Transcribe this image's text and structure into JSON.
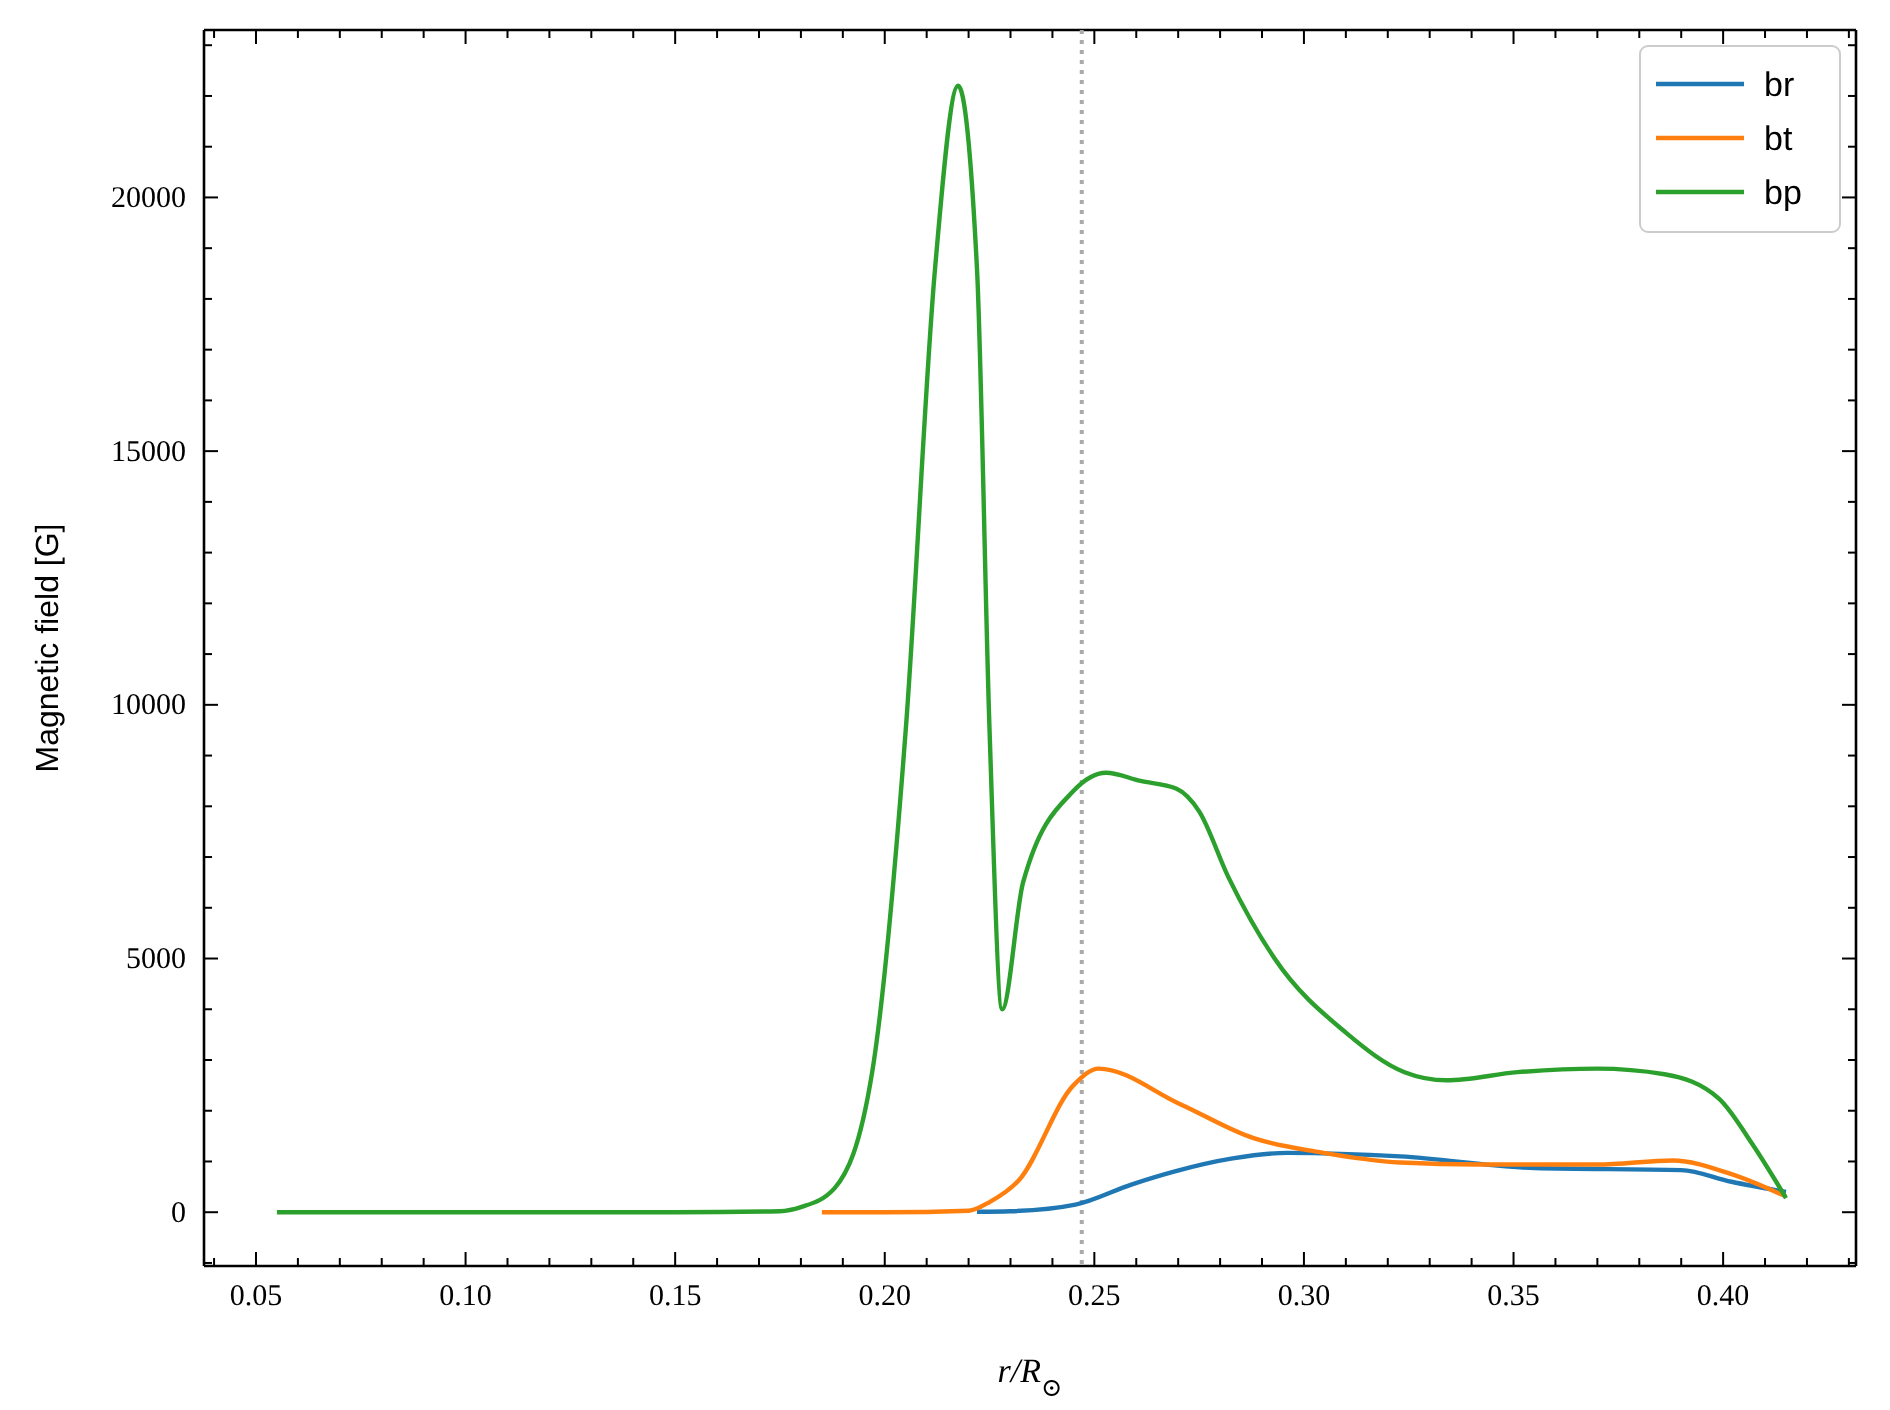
{
  "chart_data": {
    "type": "line",
    "xlabel": "r/R$_{⊙}$",
    "ylabel": "Magnetic field [G]",
    "xlim": [
      0.0376,
      0.4317
    ],
    "ylim": [
      -1060,
      23300
    ],
    "xticks": [
      {
        "value": 0.05,
        "label": "0.05"
      },
      {
        "value": 0.1,
        "label": "0.10"
      },
      {
        "value": 0.15,
        "label": "0.15"
      },
      {
        "value": 0.2,
        "label": "0.20"
      },
      {
        "value": 0.25,
        "label": "0.25"
      },
      {
        "value": 0.3,
        "label": "0.30"
      },
      {
        "value": 0.35,
        "label": "0.35"
      },
      {
        "value": 0.4,
        "label": "0.40"
      },
      {
        "value": 0.04,
        "label": null
      },
      {
        "value": 0.06,
        "label": null
      },
      {
        "value": 0.07,
        "label": null
      },
      {
        "value": 0.08,
        "label": null
      },
      {
        "value": 0.09,
        "label": null
      },
      {
        "value": 0.11,
        "label": null
      },
      {
        "value": 0.12,
        "label": null
      },
      {
        "value": 0.13,
        "label": null
      },
      {
        "value": 0.14,
        "label": null
      },
      {
        "value": 0.16,
        "label": null
      },
      {
        "value": 0.17,
        "label": null
      },
      {
        "value": 0.18,
        "label": null
      },
      {
        "value": 0.19,
        "label": null
      },
      {
        "value": 0.21,
        "label": null
      },
      {
        "value": 0.22,
        "label": null
      },
      {
        "value": 0.23,
        "label": null
      },
      {
        "value": 0.24,
        "label": null
      },
      {
        "value": 0.26,
        "label": null
      },
      {
        "value": 0.27,
        "label": null
      },
      {
        "value": 0.28,
        "label": null
      },
      {
        "value": 0.29,
        "label": null
      },
      {
        "value": 0.31,
        "label": null
      },
      {
        "value": 0.32,
        "label": null
      },
      {
        "value": 0.33,
        "label": null
      },
      {
        "value": 0.34,
        "label": null
      },
      {
        "value": 0.36,
        "label": null
      },
      {
        "value": 0.37,
        "label": null
      },
      {
        "value": 0.38,
        "label": null
      },
      {
        "value": 0.39,
        "label": null
      },
      {
        "value": 0.41,
        "label": null
      },
      {
        "value": 0.42,
        "label": null
      },
      {
        "value": 0.43,
        "label": null
      }
    ],
    "yticks": [
      0,
      5000,
      10000,
      15000,
      20000,
      {
        "value": -1000,
        "label": null
      },
      {
        "value": 1000,
        "label": null
      },
      {
        "value": 2000,
        "label": null
      },
      {
        "value": 3000,
        "label": null
      },
      {
        "value": 4000,
        "label": null
      },
      {
        "value": 6000,
        "label": null
      },
      {
        "value": 7000,
        "label": null
      },
      {
        "value": 8000,
        "label": null
      },
      {
        "value": 9000,
        "label": null
      },
      {
        "value": 11000,
        "label": null
      },
      {
        "value": 12000,
        "label": null
      },
      {
        "value": 13000,
        "label": null
      },
      {
        "value": 14000,
        "label": null
      },
      {
        "value": 16000,
        "label": null
      },
      {
        "value": 17000,
        "label": null
      },
      {
        "value": 18000,
        "label": null
      },
      {
        "value": 19000,
        "label": null
      },
      {
        "value": 21000,
        "label": null
      },
      {
        "value": 22000,
        "label": null
      },
      {
        "value": 23000,
        "label": null
      }
    ],
    "grid": false,
    "legend": "top right",
    "line_style": "solid",
    "marker": "none",
    "ref_lines": [
      {
        "axis": "x",
        "value": 0.247,
        "color": "#aaaaaa",
        "line_style": "dotted"
      }
    ],
    "series": [
      {
        "name": "br",
        "color": "#1f77b4",
        "x": [
          0.222,
          0.23,
          0.2455,
          0.259,
          0.269,
          0.283,
          0.296,
          0.323,
          0.355,
          0.39,
          0.402,
          0.415
        ],
        "values": [
          10,
          20,
          150,
          550,
          800,
          1060,
          1170,
          1100,
          870,
          830,
          600,
          400
        ]
      },
      {
        "name": "bt",
        "color": "#ff7f0e",
        "x": [
          0.185,
          0.2,
          0.22,
          0.225,
          0.232,
          0.245,
          0.251,
          0.2705,
          0.288,
          0.304,
          0.323,
          0.342,
          0.37,
          0.388,
          0.402,
          0.415
        ],
        "values": [
          0,
          0,
          30,
          200,
          630,
          2500,
          2830,
          2130,
          1460,
          1180,
          980,
          940,
          940,
          1020,
          750,
          310
        ]
      },
      {
        "name": "bp",
        "color": "#2ca02c",
        "x": [
          0.055,
          0.1,
          0.15,
          0.175,
          0.18,
          0.188,
          0.197,
          0.205,
          0.212,
          0.2175,
          0.222,
          0.225,
          0.228,
          0.233,
          0.245,
          0.2528,
          0.261,
          0.2695,
          0.275,
          0.282,
          0.293,
          0.31,
          0.324,
          0.334,
          0.351,
          0.37,
          0.386,
          0.399,
          0.407,
          0.415
        ],
        "values": [
          0,
          0,
          0,
          20,
          100,
          470,
          2760,
          9500,
          18600,
          22200,
          18600,
          9500,
          4000,
          6500,
          8300,
          8660,
          8500,
          8350,
          7900,
          6600,
          5000,
          3540,
          2760,
          2600,
          2760,
          2830,
          2720,
          2240,
          1340,
          280
        ]
      }
    ]
  }
}
